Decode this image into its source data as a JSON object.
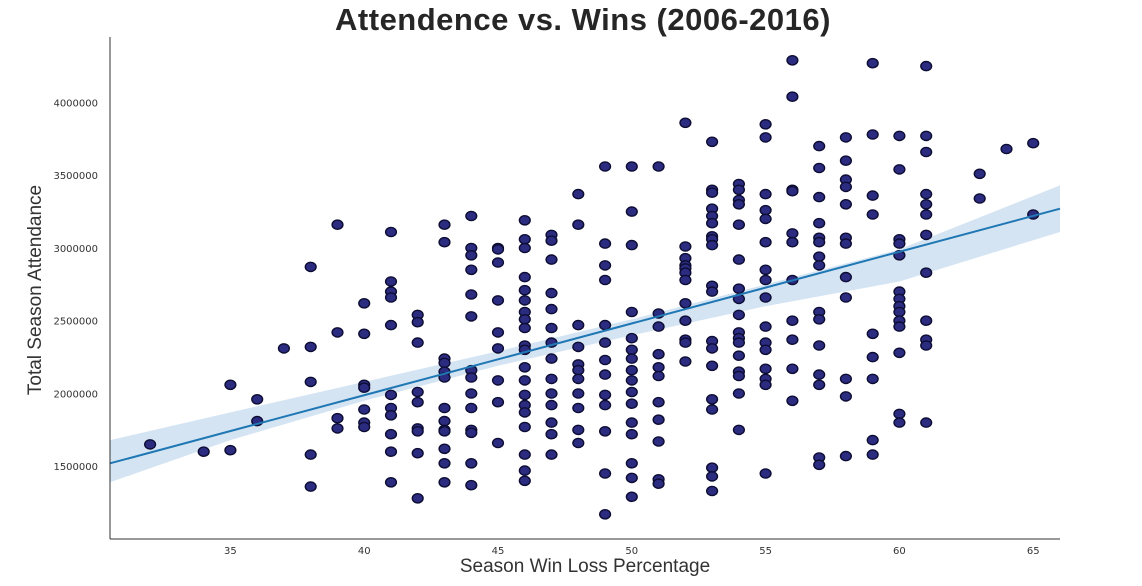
{
  "chart_data": {
    "type": "scatter",
    "title": "Attendence vs. Wins (2006-2016)",
    "xlabel": "Season Win Loss Percentage",
    "ylabel": "Total Season Attendance",
    "xlim": [
      30.5,
      66
    ],
    "ylim": [
      1000000,
      4450000
    ],
    "x_ticks": [
      35,
      40,
      45,
      50,
      55,
      60,
      65
    ],
    "y_ticks": [
      1500000,
      2000000,
      2500000,
      3000000,
      3500000,
      4000000
    ],
    "grid": false,
    "colors": {
      "point_fill": "#2b2b80",
      "point_edge": "#0d0d33",
      "regression_line": "#1f77b4",
      "confidence_band": "#c6dbef"
    },
    "regression": {
      "x": [
        30.5,
        66
      ],
      "y": [
        1520000,
        3270000
      ]
    },
    "confidence_band": {
      "x": [
        30.5,
        35,
        40,
        45,
        50,
        55,
        60,
        66
      ],
      "lower": [
        1390000,
        1680000,
        1950000,
        2190000,
        2400000,
        2600000,
        2770000,
        3110000
      ],
      "upper": [
        1680000,
        1870000,
        2080000,
        2290000,
        2510000,
        2750000,
        2990000,
        3430000
      ]
    },
    "points": [
      [
        32,
        1650000
      ],
      [
        34,
        1600000
      ],
      [
        35,
        2060000
      ],
      [
        35,
        1610000
      ],
      [
        36,
        1960000
      ],
      [
        36,
        1810000
      ],
      [
        37,
        2310000
      ],
      [
        38,
        2870000
      ],
      [
        38,
        2320000
      ],
      [
        38,
        2080000
      ],
      [
        38,
        1580000
      ],
      [
        38,
        1360000
      ],
      [
        39,
        3160000
      ],
      [
        39,
        2420000
      ],
      [
        39,
        1830000
      ],
      [
        39,
        1760000
      ],
      [
        40,
        2620000
      ],
      [
        40,
        2410000
      ],
      [
        40,
        2060000
      ],
      [
        40,
        2040000
      ],
      [
        40,
        1890000
      ],
      [
        40,
        1800000
      ],
      [
        40,
        1770000
      ],
      [
        41,
        3110000
      ],
      [
        41,
        2770000
      ],
      [
        41,
        2700000
      ],
      [
        41,
        2660000
      ],
      [
        41,
        2470000
      ],
      [
        41,
        1990000
      ],
      [
        41,
        1900000
      ],
      [
        41,
        1850000
      ],
      [
        41,
        1720000
      ],
      [
        41,
        1600000
      ],
      [
        41,
        1390000
      ],
      [
        42,
        2540000
      ],
      [
        42,
        2490000
      ],
      [
        42,
        2350000
      ],
      [
        42,
        2010000
      ],
      [
        42,
        1940000
      ],
      [
        42,
        1760000
      ],
      [
        42,
        1740000
      ],
      [
        42,
        1590000
      ],
      [
        42,
        1280000
      ],
      [
        43,
        3160000
      ],
      [
        43,
        3040000
      ],
      [
        43,
        2240000
      ],
      [
        43,
        2210000
      ],
      [
        43,
        2150000
      ],
      [
        43,
        2110000
      ],
      [
        43,
        1900000
      ],
      [
        43,
        1810000
      ],
      [
        43,
        1750000
      ],
      [
        43,
        1740000
      ],
      [
        43,
        1620000
      ],
      [
        43,
        1520000
      ],
      [
        43,
        1390000
      ],
      [
        44,
        3220000
      ],
      [
        44,
        3000000
      ],
      [
        44,
        2950000
      ],
      [
        44,
        2850000
      ],
      [
        44,
        2680000
      ],
      [
        44,
        2530000
      ],
      [
        44,
        2160000
      ],
      [
        44,
        2110000
      ],
      [
        44,
        2000000
      ],
      [
        44,
        1900000
      ],
      [
        44,
        1750000
      ],
      [
        44,
        1730000
      ],
      [
        44,
        1520000
      ],
      [
        44,
        1370000
      ],
      [
        45,
        3000000
      ],
      [
        45,
        2990000
      ],
      [
        45,
        2900000
      ],
      [
        45,
        2640000
      ],
      [
        45,
        2420000
      ],
      [
        45,
        2310000
      ],
      [
        45,
        2090000
      ],
      [
        45,
        1940000
      ],
      [
        45,
        1660000
      ],
      [
        46,
        3190000
      ],
      [
        46,
        3060000
      ],
      [
        46,
        3000000
      ],
      [
        46,
        2800000
      ],
      [
        46,
        2710000
      ],
      [
        46,
        2640000
      ],
      [
        46,
        2560000
      ],
      [
        46,
        2510000
      ],
      [
        46,
        2450000
      ],
      [
        46,
        2330000
      ],
      [
        46,
        2300000
      ],
      [
        46,
        2180000
      ],
      [
        46,
        2090000
      ],
      [
        46,
        1990000
      ],
      [
        46,
        1920000
      ],
      [
        46,
        1870000
      ],
      [
        46,
        1770000
      ],
      [
        46,
        1580000
      ],
      [
        46,
        1470000
      ],
      [
        46,
        1400000
      ],
      [
        47,
        3090000
      ],
      [
        47,
        3050000
      ],
      [
        47,
        2920000
      ],
      [
        47,
        2690000
      ],
      [
        47,
        2580000
      ],
      [
        47,
        2450000
      ],
      [
        47,
        2350000
      ],
      [
        47,
        2240000
      ],
      [
        47,
        2100000
      ],
      [
        47,
        2000000
      ],
      [
        47,
        1920000
      ],
      [
        47,
        1800000
      ],
      [
        47,
        1720000
      ],
      [
        47,
        1580000
      ],
      [
        48,
        3370000
      ],
      [
        48,
        3160000
      ],
      [
        48,
        2470000
      ],
      [
        48,
        2320000
      ],
      [
        48,
        2200000
      ],
      [
        48,
        2160000
      ],
      [
        48,
        2100000
      ],
      [
        48,
        2000000
      ],
      [
        48,
        1900000
      ],
      [
        48,
        1750000
      ],
      [
        48,
        1660000
      ],
      [
        49,
        3560000
      ],
      [
        49,
        3030000
      ],
      [
        49,
        2880000
      ],
      [
        49,
        2780000
      ],
      [
        49,
        2470000
      ],
      [
        49,
        2350000
      ],
      [
        49,
        2230000
      ],
      [
        49,
        2130000
      ],
      [
        49,
        1990000
      ],
      [
        49,
        1920000
      ],
      [
        49,
        1740000
      ],
      [
        49,
        1450000
      ],
      [
        49,
        1170000
      ],
      [
        50,
        3560000
      ],
      [
        50,
        3250000
      ],
      [
        50,
        3020000
      ],
      [
        50,
        2560000
      ],
      [
        50,
        2380000
      ],
      [
        50,
        2300000
      ],
      [
        50,
        2240000
      ],
      [
        50,
        2160000
      ],
      [
        50,
        2090000
      ],
      [
        50,
        2010000
      ],
      [
        50,
        1930000
      ],
      [
        50,
        1800000
      ],
      [
        50,
        1720000
      ],
      [
        50,
        1520000
      ],
      [
        50,
        1420000
      ],
      [
        50,
        1290000
      ],
      [
        51,
        3560000
      ],
      [
        51,
        2550000
      ],
      [
        51,
        2460000
      ],
      [
        51,
        2270000
      ],
      [
        51,
        2180000
      ],
      [
        51,
        2120000
      ],
      [
        51,
        1940000
      ],
      [
        51,
        1820000
      ],
      [
        51,
        1670000
      ],
      [
        51,
        1410000
      ],
      [
        51,
        1380000
      ],
      [
        52,
        3860000
      ],
      [
        52,
        3010000
      ],
      [
        52,
        2930000
      ],
      [
        52,
        2880000
      ],
      [
        52,
        2860000
      ],
      [
        52,
        2830000
      ],
      [
        52,
        2780000
      ],
      [
        52,
        2620000
      ],
      [
        52,
        2500000
      ],
      [
        52,
        2370000
      ],
      [
        52,
        2350000
      ],
      [
        52,
        2220000
      ],
      [
        53,
        3730000
      ],
      [
        53,
        3400000
      ],
      [
        53,
        3380000
      ],
      [
        53,
        3270000
      ],
      [
        53,
        3220000
      ],
      [
        53,
        3170000
      ],
      [
        53,
        3080000
      ],
      [
        53,
        3060000
      ],
      [
        53,
        3020000
      ],
      [
        53,
        2740000
      ],
      [
        53,
        2700000
      ],
      [
        53,
        2360000
      ],
      [
        53,
        2310000
      ],
      [
        53,
        2190000
      ],
      [
        53,
        1960000
      ],
      [
        53,
        1890000
      ],
      [
        53,
        1490000
      ],
      [
        53,
        1430000
      ],
      [
        53,
        1330000
      ],
      [
        54,
        3440000
      ],
      [
        54,
        3400000
      ],
      [
        54,
        3330000
      ],
      [
        54,
        3300000
      ],
      [
        54,
        3160000
      ],
      [
        54,
        2920000
      ],
      [
        54,
        2720000
      ],
      [
        54,
        2650000
      ],
      [
        54,
        2540000
      ],
      [
        54,
        2420000
      ],
      [
        54,
        2380000
      ],
      [
        54,
        2350000
      ],
      [
        54,
        2260000
      ],
      [
        54,
        2150000
      ],
      [
        54,
        2120000
      ],
      [
        54,
        2000000
      ],
      [
        54,
        1750000
      ],
      [
        55,
        3850000
      ],
      [
        55,
        3760000
      ],
      [
        55,
        3370000
      ],
      [
        55,
        3260000
      ],
      [
        55,
        3200000
      ],
      [
        55,
        3040000
      ],
      [
        55,
        2850000
      ],
      [
        55,
        2780000
      ],
      [
        55,
        2660000
      ],
      [
        55,
        2460000
      ],
      [
        55,
        2350000
      ],
      [
        55,
        2300000
      ],
      [
        55,
        2170000
      ],
      [
        55,
        2100000
      ],
      [
        55,
        2060000
      ],
      [
        55,
        1450000
      ],
      [
        56,
        4290000
      ],
      [
        56,
        4040000
      ],
      [
        56,
        3400000
      ],
      [
        56,
        3390000
      ],
      [
        56,
        3100000
      ],
      [
        56,
        3040000
      ],
      [
        56,
        2780000
      ],
      [
        56,
        2500000
      ],
      [
        56,
        2370000
      ],
      [
        56,
        2170000
      ],
      [
        56,
        1950000
      ],
      [
        57,
        3700000
      ],
      [
        57,
        3550000
      ],
      [
        57,
        3350000
      ],
      [
        57,
        3170000
      ],
      [
        57,
        3070000
      ],
      [
        57,
        3040000
      ],
      [
        57,
        2940000
      ],
      [
        57,
        2880000
      ],
      [
        57,
        2560000
      ],
      [
        57,
        2510000
      ],
      [
        57,
        2330000
      ],
      [
        57,
        2130000
      ],
      [
        57,
        2060000
      ],
      [
        57,
        1560000
      ],
      [
        57,
        1510000
      ],
      [
        58,
        3760000
      ],
      [
        58,
        3600000
      ],
      [
        58,
        3470000
      ],
      [
        58,
        3420000
      ],
      [
        58,
        3300000
      ],
      [
        58,
        3070000
      ],
      [
        58,
        3030000
      ],
      [
        58,
        2800000
      ],
      [
        58,
        2660000
      ],
      [
        58,
        2100000
      ],
      [
        58,
        1980000
      ],
      [
        58,
        1570000
      ],
      [
        59,
        4270000
      ],
      [
        59,
        3780000
      ],
      [
        59,
        3360000
      ],
      [
        59,
        3230000
      ],
      [
        59,
        2410000
      ],
      [
        59,
        2250000
      ],
      [
        59,
        2100000
      ],
      [
        59,
        1680000
      ],
      [
        59,
        1580000
      ],
      [
        60,
        3770000
      ],
      [
        60,
        3540000
      ],
      [
        60,
        3060000
      ],
      [
        60,
        3030000
      ],
      [
        60,
        2950000
      ],
      [
        60,
        2700000
      ],
      [
        60,
        2650000
      ],
      [
        60,
        2600000
      ],
      [
        60,
        2560000
      ],
      [
        60,
        2500000
      ],
      [
        60,
        2460000
      ],
      [
        60,
        2280000
      ],
      [
        60,
        1860000
      ],
      [
        60,
        1800000
      ],
      [
        61,
        4250000
      ],
      [
        61,
        3770000
      ],
      [
        61,
        3660000
      ],
      [
        61,
        3370000
      ],
      [
        61,
        3300000
      ],
      [
        61,
        3230000
      ],
      [
        61,
        3090000
      ],
      [
        61,
        2830000
      ],
      [
        61,
        2500000
      ],
      [
        61,
        2370000
      ],
      [
        61,
        2330000
      ],
      [
        61,
        1800000
      ],
      [
        63,
        3510000
      ],
      [
        63,
        3340000
      ],
      [
        64,
        3680000
      ],
      [
        65,
        3720000
      ],
      [
        65,
        3230000
      ]
    ]
  }
}
